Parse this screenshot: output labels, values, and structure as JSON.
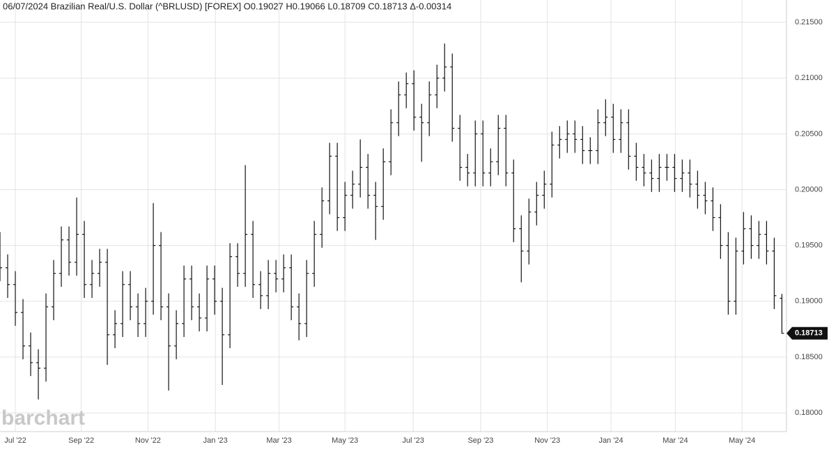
{
  "chart_data": {
    "type": "ohlc",
    "title": "06/07/2024 Brazilian Real/U.S. Dollar (^BRLUSD) [FOREX] O0.19027 H0.19066 L0.18709 C0.18713 Δ-0.00314",
    "watermark": "barchart",
    "color": "#111111",
    "grid": true,
    "xlim": [
      0,
      102.6
    ],
    "xticks": [
      {
        "value": 2,
        "label": "Jul '22"
      },
      {
        "value": 10.6,
        "label": "Sep '22"
      },
      {
        "value": 19.3,
        "label": "Nov '22"
      },
      {
        "value": 28.1,
        "label": "Jan '23"
      },
      {
        "value": 36.4,
        "label": "Mar '23"
      },
      {
        "value": 45,
        "label": "May '23"
      },
      {
        "value": 53.9,
        "label": "Jul '23"
      },
      {
        "value": 62.7,
        "label": "Sep '23"
      },
      {
        "value": 71.4,
        "label": "Nov '23"
      },
      {
        "value": 79.7,
        "label": "Jan '24"
      },
      {
        "value": 88.1,
        "label": "Mar '24"
      },
      {
        "value": 96.8,
        "label": "May '24"
      }
    ],
    "ylim": [
      0.17832,
      0.217
    ],
    "yticks": [
      {
        "value": 0.18,
        "label": "0.18000"
      },
      {
        "value": 0.185,
        "label": "0.18500"
      },
      {
        "value": 0.19,
        "label": "0.19000"
      },
      {
        "value": 0.195,
        "label": "0.19500"
      },
      {
        "value": 0.2,
        "label": "0.20000"
      },
      {
        "value": 0.205,
        "label": "0.20500"
      },
      {
        "value": 0.21,
        "label": "0.21000"
      },
      {
        "value": 0.215,
        "label": "0.21500"
      }
    ],
    "open": [
      0.195,
      0.193,
      0.1915,
      0.189,
      0.186,
      0.1845,
      0.184,
      0.1895,
      0.1925,
      0.1955,
      0.1935,
      0.196,
      0.1915,
      0.1925,
      0.1935,
      0.187,
      0.188,
      0.1915,
      0.1895,
      0.188,
      0.19,
      0.195,
      0.1895,
      0.186,
      0.188,
      0.192,
      0.1895,
      0.1885,
      0.192,
      0.19,
      0.187,
      0.194,
      0.1925,
      0.196,
      0.1915,
      0.1905,
      0.1925,
      0.192,
      0.193,
      0.1895,
      0.188,
      0.1925,
      0.196,
      0.199,
      0.203,
      0.1975,
      0.1995,
      0.2005,
      0.202,
      0.1995,
      0.1985,
      0.2025,
      0.206,
      0.2085,
      0.2095,
      0.2065,
      0.206,
      0.2085,
      0.21,
      0.211,
      0.2055,
      0.202,
      0.2015,
      0.205,
      0.2015,
      0.2025,
      0.2055,
      0.2015,
      0.1965,
      0.1945,
      0.198,
      0.1995,
      0.2005,
      0.204,
      0.2045,
      0.205,
      0.2045,
      0.2035,
      0.2035,
      0.206,
      0.2065,
      0.2045,
      0.206,
      0.203,
      0.202,
      0.2015,
      0.201,
      0.202,
      0.202,
      0.201,
      0.2015,
      0.2005,
      0.1995,
      0.199,
      0.1975,
      0.195,
      0.19,
      0.1945,
      0.1965,
      0.195,
      0.196,
      0.1945,
      0.19027
    ],
    "high": [
      0.1962,
      0.1942,
      0.1927,
      0.1902,
      0.1872,
      0.1857,
      0.1907,
      0.1937,
      0.1967,
      0.1967,
      0.1993,
      0.1972,
      0.1937,
      0.1947,
      0.1947,
      0.1892,
      0.1927,
      0.1927,
      0.1907,
      0.1912,
      0.1988,
      0.1962,
      0.1907,
      0.1892,
      0.1932,
      0.1932,
      0.1907,
      0.1932,
      0.1932,
      0.1912,
      0.1952,
      0.1952,
      0.2022,
      0.1972,
      0.1927,
      0.1937,
      0.1937,
      0.1942,
      0.1942,
      0.1907,
      0.1937,
      0.1972,
      0.2002,
      0.2042,
      0.2042,
      0.2007,
      0.2017,
      0.2045,
      0.2032,
      0.2007,
      0.2037,
      0.2072,
      0.2097,
      0.2105,
      0.2107,
      0.2077,
      0.2097,
      0.2112,
      0.2131,
      0.2122,
      0.2067,
      0.2032,
      0.2062,
      0.2062,
      0.2037,
      0.2067,
      0.2067,
      0.2027,
      0.1977,
      0.1992,
      0.2007,
      0.2017,
      0.2052,
      0.2057,
      0.2062,
      0.2062,
      0.2057,
      0.2047,
      0.2072,
      0.2081,
      0.2077,
      0.2072,
      0.2072,
      0.2042,
      0.2032,
      0.2027,
      0.2032,
      0.2032,
      0.2032,
      0.2027,
      0.2027,
      0.2017,
      0.2007,
      0.2002,
      0.1987,
      0.1962,
      0.1957,
      0.198,
      0.1977,
      0.1972,
      0.1972,
      0.1957,
      0.19066
    ],
    "low": [
      0.1918,
      0.1903,
      0.1878,
      0.1848,
      0.1833,
      0.1812,
      0.1828,
      0.1883,
      0.1913,
      0.1923,
      0.1923,
      0.1903,
      0.1903,
      0.1913,
      0.1843,
      0.1858,
      0.1868,
      0.1883,
      0.1868,
      0.1868,
      0.1888,
      0.1883,
      0.182,
      0.1848,
      0.1868,
      0.1883,
      0.1873,
      0.1873,
      0.1888,
      0.1825,
      0.1858,
      0.1913,
      0.1913,
      0.1903,
      0.1893,
      0.1893,
      0.1908,
      0.1908,
      0.1883,
      0.1865,
      0.1868,
      0.1913,
      0.1948,
      0.1978,
      0.1963,
      0.1963,
      0.1983,
      0.1993,
      0.1983,
      0.1955,
      0.1973,
      0.2013,
      0.2048,
      0.2073,
      0.2053,
      0.2025,
      0.2048,
      0.2073,
      0.2088,
      0.2043,
      0.2008,
      0.2003,
      0.2003,
      0.2003,
      0.2003,
      0.2013,
      0.2003,
      0.1953,
      0.1917,
      0.1933,
      0.1968,
      0.1983,
      0.1993,
      0.2028,
      0.2033,
      0.2033,
      0.2023,
      0.2023,
      0.2023,
      0.2048,
      0.2033,
      0.2033,
      0.2018,
      0.2008,
      0.2003,
      0.1998,
      0.1998,
      0.2008,
      0.1998,
      0.1998,
      0.1993,
      0.1983,
      0.1978,
      0.1963,
      0.1938,
      0.1888,
      0.1888,
      0.1933,
      0.1938,
      0.1938,
      0.1933,
      0.1893,
      0.18709
    ],
    "close": [
      0.193,
      0.1915,
      0.189,
      0.186,
      0.1845,
      0.184,
      0.1895,
      0.1925,
      0.1955,
      0.1935,
      0.196,
      0.1915,
      0.1925,
      0.1935,
      0.187,
      0.188,
      0.1915,
      0.1895,
      0.188,
      0.19,
      0.195,
      0.1895,
      0.186,
      0.188,
      0.192,
      0.1895,
      0.1885,
      0.192,
      0.19,
      0.187,
      0.194,
      0.1925,
      0.196,
      0.1915,
      0.1905,
      0.1925,
      0.192,
      0.193,
      0.1895,
      0.188,
      0.1925,
      0.196,
      0.199,
      0.203,
      0.1975,
      0.1995,
      0.2005,
      0.202,
      0.1995,
      0.1985,
      0.2025,
      0.206,
      0.2085,
      0.2095,
      0.2065,
      0.206,
      0.2085,
      0.21,
      0.211,
      0.2055,
      0.202,
      0.2015,
      0.205,
      0.2015,
      0.2025,
      0.2055,
      0.2015,
      0.1965,
      0.1945,
      0.198,
      0.1995,
      0.2005,
      0.204,
      0.2045,
      0.205,
      0.2045,
      0.2035,
      0.2035,
      0.206,
      0.2065,
      0.2045,
      0.206,
      0.203,
      0.202,
      0.2015,
      0.201,
      0.202,
      0.202,
      0.201,
      0.2015,
      0.2005,
      0.1995,
      0.199,
      0.1975,
      0.195,
      0.19,
      0.1945,
      0.1965,
      0.195,
      0.196,
      0.1945,
      0.1905,
      0.18713
    ]
  }
}
